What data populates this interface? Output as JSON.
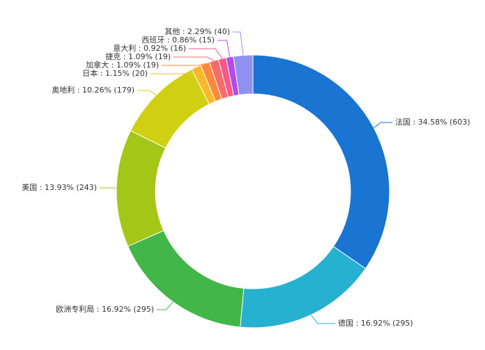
{
  "chart_data": {
    "type": "donut",
    "values": [
      603,
      295,
      295,
      243,
      179,
      20,
      19,
      19,
      16,
      15,
      40
    ],
    "value_labels": [
      "法国 : 34.58% (603)",
      "德国 : 16.92% (295)",
      "欧洲专利局 : 16.92% (295)",
      "美国 : 13.93% (243)",
      "奥地利 : 10.26% (179)",
      "日本 : 1.15% (20)",
      "加拿大 : 1.09% (19)",
      "捷克 : 1.09% (19)",
      "意大利 : 0.92% (16)",
      "西班牙 : 0.86% (15)",
      "其他 : 2.29% (40)"
    ],
    "colors": [
      "#1a75d2",
      "#27b1d1",
      "#43b649",
      "#a3c617",
      "#d0cf12",
      "#fbb829",
      "#fb8a3d",
      "#f76b6b",
      "#f5598b",
      "#b34be8",
      "#8f91f0"
    ]
  }
}
